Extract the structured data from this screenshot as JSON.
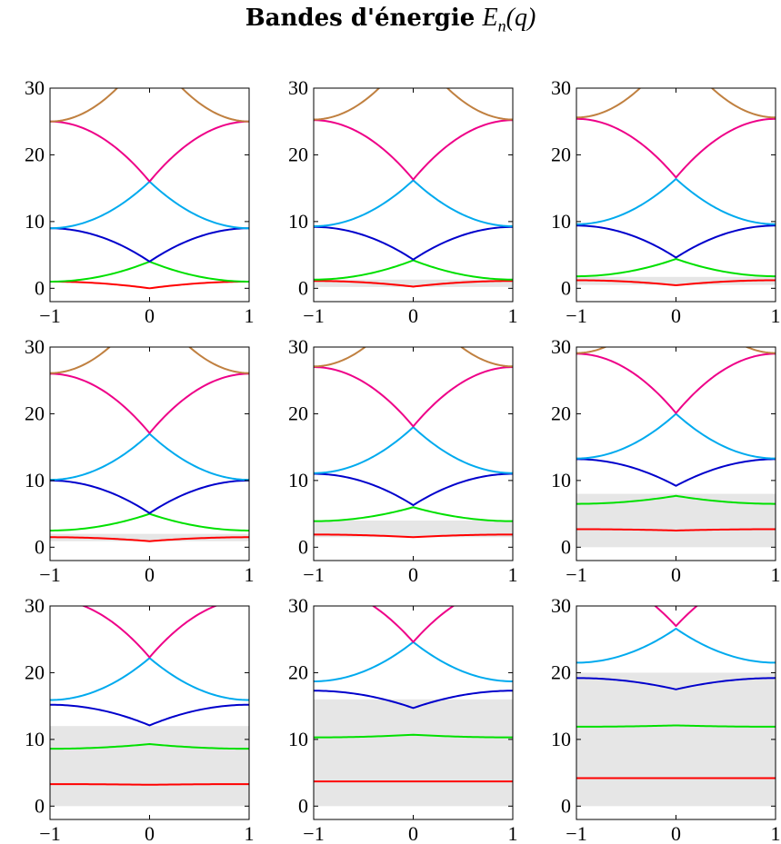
{
  "title": {
    "bold": "Bandes d'énergie",
    "math_prefix": "E",
    "math_sub": "n",
    "math_suffix": "(q)"
  },
  "chart_data": {
    "type": "line",
    "layout": "3x3 grid of panels",
    "xlim": [
      -1,
      1
    ],
    "ylim": [
      -2,
      30
    ],
    "xticks": [
      -1,
      0,
      1
    ],
    "xtick_labels": [
      "−1",
      "0",
      "1"
    ],
    "yticks": [
      0,
      10,
      20,
      30
    ],
    "ytick_labels": [
      "0",
      "10",
      "20",
      "30"
    ],
    "band_colors": [
      "#ff0000",
      "#00e000",
      "#0000cc",
      "#00aaee",
      "#ee0088",
      "#c08040"
    ],
    "gap_fill_color": "#e6e6e6",
    "panels": [
      {
        "x": [
          -1,
          0,
          1
        ],
        "series": [
          {
            "band": 1,
            "values": [
              1.0,
              0.0,
              1.0
            ]
          },
          {
            "band": 2,
            "values": [
              1.0,
              4.0,
              1.0
            ]
          },
          {
            "band": 3,
            "values": [
              9.0,
              4.0,
              9.0
            ]
          },
          {
            "band": 4,
            "values": [
              9.0,
              16.0,
              9.0
            ]
          },
          {
            "band": 5,
            "values": [
              25.0,
              16.0,
              25.0
            ]
          },
          {
            "band": 6,
            "values": [
              25.0,
              36.0,
              25.0
            ]
          }
        ]
      },
      {
        "x": [
          -1,
          0,
          1
        ],
        "series": [
          {
            "band": 1,
            "values": [
              1.1,
              0.25,
              1.1
            ]
          },
          {
            "band": 2,
            "values": [
              1.3,
              4.2,
              1.3
            ]
          },
          {
            "band": 3,
            "values": [
              9.2,
              4.3,
              9.2
            ]
          },
          {
            "band": 4,
            "values": [
              9.3,
              16.2,
              9.3
            ]
          },
          {
            "band": 5,
            "values": [
              25.2,
              16.3,
              25.2
            ]
          },
          {
            "band": 6,
            "values": [
              25.3,
              36.2,
              25.3
            ]
          }
        ]
      },
      {
        "x": [
          -1,
          0,
          1
        ],
        "series": [
          {
            "band": 1,
            "values": [
              1.2,
              0.45,
              1.2
            ]
          },
          {
            "band": 2,
            "values": [
              1.8,
              4.4,
              1.8
            ]
          },
          {
            "band": 3,
            "values": [
              9.4,
              4.6,
              9.4
            ]
          },
          {
            "band": 4,
            "values": [
              9.6,
              16.4,
              9.6
            ]
          },
          {
            "band": 5,
            "values": [
              25.4,
              16.6,
              25.4
            ]
          },
          {
            "band": 6,
            "values": [
              25.6,
              36.4,
              25.6
            ]
          }
        ]
      },
      {
        "x": [
          -1,
          0,
          1
        ],
        "series": [
          {
            "band": 1,
            "values": [
              1.5,
              0.9,
              1.5
            ]
          },
          {
            "band": 2,
            "values": [
              2.5,
              5.0,
              2.5
            ]
          },
          {
            "band": 3,
            "values": [
              10.0,
              5.1,
              10.0
            ]
          },
          {
            "band": 4,
            "values": [
              10.1,
              17.0,
              10.1
            ]
          },
          {
            "band": 5,
            "values": [
              26.0,
              17.1,
              26.0
            ]
          },
          {
            "band": 6,
            "values": [
              26.1,
              37.0,
              26.1
            ]
          }
        ]
      },
      {
        "x": [
          -1,
          0,
          1
        ],
        "series": [
          {
            "band": 1,
            "values": [
              1.9,
              1.5,
              1.9
            ]
          },
          {
            "band": 2,
            "values": [
              3.9,
              6.0,
              3.9
            ]
          },
          {
            "band": 3,
            "values": [
              11.0,
              6.3,
              11.0
            ]
          },
          {
            "band": 4,
            "values": [
              11.1,
              18.0,
              11.1
            ]
          },
          {
            "band": 5,
            "values": [
              27.0,
              18.1,
              27.0
            ]
          },
          {
            "band": 6,
            "values": [
              27.1,
              38.0,
              27.1
            ]
          }
        ]
      },
      {
        "x": [
          -1,
          0,
          1
        ],
        "series": [
          {
            "band": 1,
            "values": [
              2.7,
              2.5,
              2.7
            ]
          },
          {
            "band": 2,
            "values": [
              6.5,
              7.7,
              6.5
            ]
          },
          {
            "band": 3,
            "values": [
              13.2,
              9.2,
              13.2
            ]
          },
          {
            "band": 4,
            "values": [
              13.3,
              20.0,
              13.3
            ]
          },
          {
            "band": 5,
            "values": [
              29.0,
              20.1,
              29.0
            ]
          },
          {
            "band": 6,
            "values": [
              29.1,
              40.0,
              29.1
            ]
          }
        ]
      },
      {
        "x": [
          -1,
          0,
          1
        ],
        "series": [
          {
            "band": 1,
            "values": [
              3.3,
              3.2,
              3.3
            ]
          },
          {
            "band": 2,
            "values": [
              8.6,
              9.3,
              8.6
            ]
          },
          {
            "band": 3,
            "values": [
              15.2,
              12.1,
              15.2
            ]
          },
          {
            "band": 4,
            "values": [
              15.9,
              22.2,
              15.9
            ]
          },
          {
            "band": 5,
            "values": [
              31.0,
              22.3,
              31.0
            ]
          }
        ]
      },
      {
        "x": [
          -1,
          0,
          1
        ],
        "series": [
          {
            "band": 1,
            "values": [
              3.7,
              3.7,
              3.7
            ]
          },
          {
            "band": 2,
            "values": [
              10.3,
              10.7,
              10.3
            ]
          },
          {
            "band": 3,
            "values": [
              17.3,
              14.7,
              17.3
            ]
          },
          {
            "band": 4,
            "values": [
              18.7,
              24.6,
              18.7
            ]
          },
          {
            "band": 5,
            "values": [
              33.0,
              24.6,
              33.0
            ]
          }
        ]
      },
      {
        "x": [
          -1,
          0,
          1
        ],
        "series": [
          {
            "band": 1,
            "values": [
              4.2,
              4.2,
              4.2
            ]
          },
          {
            "band": 2,
            "values": [
              11.9,
              12.1,
              11.9
            ]
          },
          {
            "band": 3,
            "values": [
              19.2,
              17.5,
              19.2
            ]
          },
          {
            "band": 4,
            "values": [
              21.5,
              26.6,
              21.5
            ]
          },
          {
            "band": 5,
            "values": [
              35.0,
              27.0,
              35.0
            ]
          }
        ]
      }
    ],
    "gaps": [
      null,
      [
        [
          0.2,
          1.3
        ]
      ],
      [
        [
          0.5,
          1.7
        ]
      ],
      [
        [
          0.9,
          2.0
        ]
      ],
      [
        [
          1.5,
          4.0
        ]
      ],
      [
        [
          0.0,
          8.0
        ]
      ],
      [
        [
          0.0,
          12.0
        ]
      ],
      [
        [
          0.0,
          16.0
        ]
      ],
      [
        [
          0.0,
          20.0
        ]
      ]
    ]
  }
}
